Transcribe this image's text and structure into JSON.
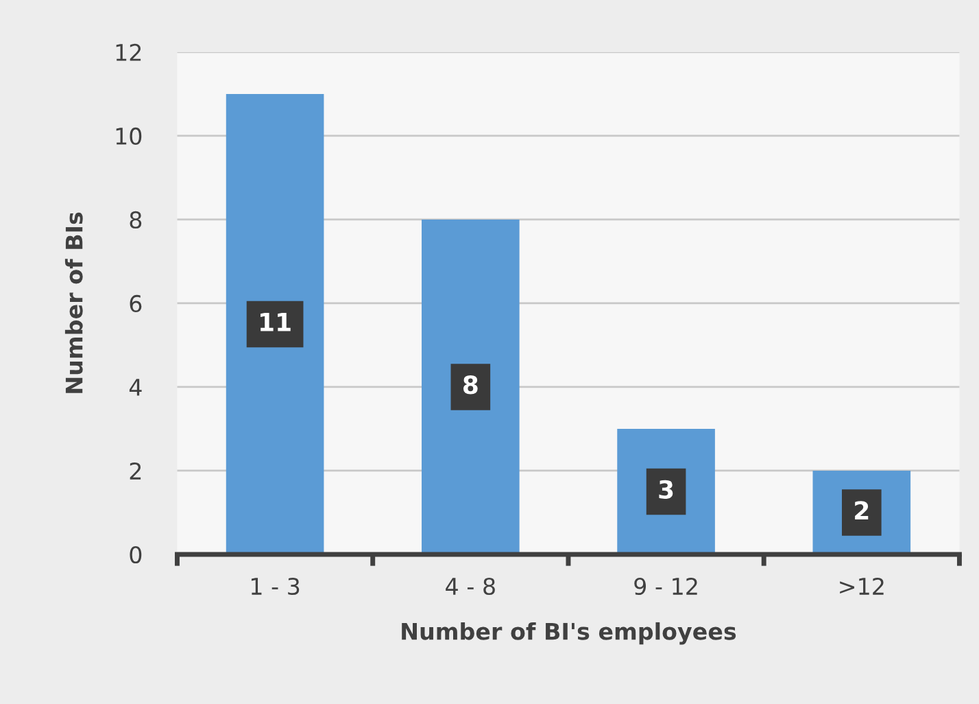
{
  "chart_data": {
    "type": "bar",
    "xlabel": "Number of BI's employees",
    "ylabel": "Number of BIs",
    "categories": [
      "1 - 3",
      "4 - 8",
      "9 - 12",
      ">12"
    ],
    "values": [
      11,
      8,
      3,
      2
    ],
    "color": "#5b9bd5",
    "ylim": [
      0,
      12
    ],
    "yticks": [
      0,
      2,
      4,
      6,
      8,
      10,
      12
    ],
    "grid": "y",
    "data_labels": true
  }
}
